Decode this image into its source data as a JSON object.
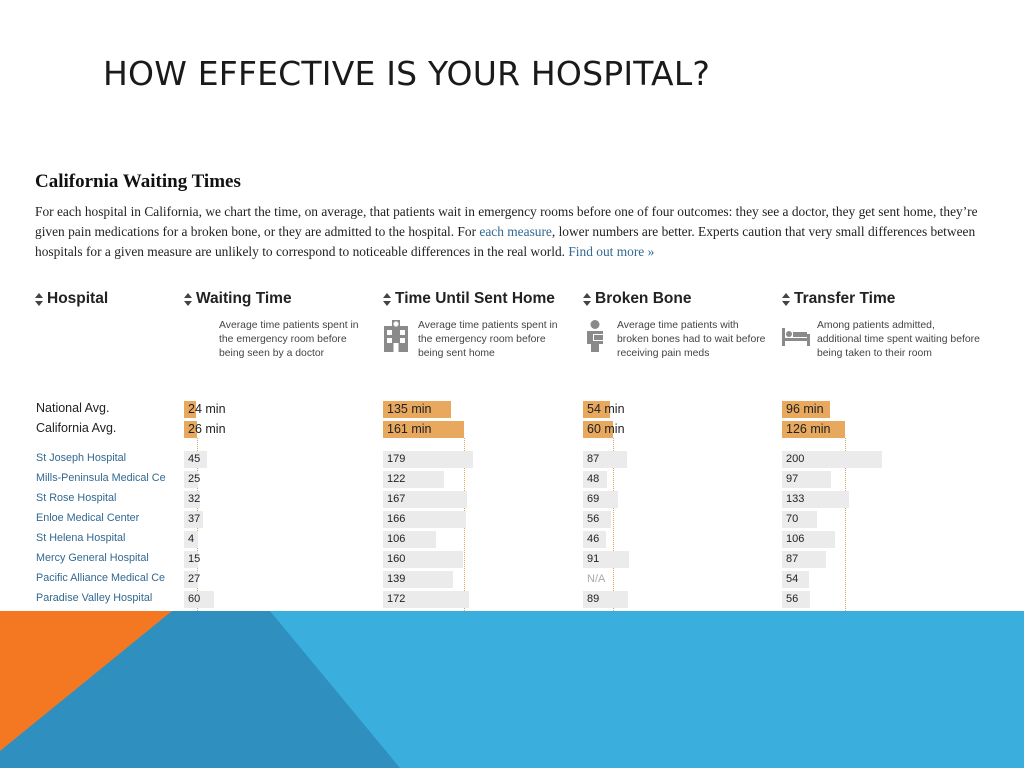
{
  "slide": {
    "title": "HOW EFFECTIVE IS YOUR HOSPITAL?"
  },
  "embed": {
    "title": "California Waiting Times",
    "desc_part1": "For each hospital in California, we chart the time, on average, that patients wait in emergency rooms before one of four outcomes: they see a doctor, they get sent home, they’re given pain medications for a broken bone, or they are admitted to the hospital. For ",
    "desc_link1": "each measure",
    "desc_part2": ", lower numbers are better. Experts caution that very small differences between hospitals for a given measure are unlikely to correspond to noticeable differences in the real world. ",
    "desc_link2": "Find out more »"
  },
  "columns": {
    "hospital": {
      "label": "Hospital"
    },
    "waiting": {
      "label": "Waiting Time",
      "desc": "Average time patients spent in the emergency room before being seen by a doctor",
      "icon": "none"
    },
    "sent_home": {
      "label": "Time Until Sent Home",
      "desc": "Average time patients spent in the emergency room before being sent home",
      "icon": "hospital-building-icon"
    },
    "broken_bone": {
      "label": "Broken Bone",
      "desc": "Average time patients with broken bones had to wait before receiving pain meds",
      "icon": "patient-with-cast-icon"
    },
    "transfer": {
      "label": "Transfer Time",
      "desc": "Among patients admitted, additional time spent waiting before being taken to their room",
      "icon": "hospital-bed-icon"
    }
  },
  "averages": [
    {
      "label": "National Avg.",
      "waiting": "24 min",
      "sent_home": "135 min",
      "broken_bone": "54 min",
      "transfer": "96 min"
    },
    {
      "label": "California Avg.",
      "waiting": "26 min",
      "sent_home": "161 min",
      "broken_bone": "60 min",
      "transfer": "126 min"
    }
  ],
  "avg_values": [
    {
      "waiting": 24,
      "sent_home": 135,
      "broken_bone": 54,
      "transfer": 96
    },
    {
      "waiting": 26,
      "sent_home": 161,
      "broken_bone": 60,
      "transfer": 126
    }
  ],
  "hospitals": [
    {
      "name": "St Joseph Hospital",
      "waiting": "45",
      "sent_home": "179",
      "broken_bone": "87",
      "transfer": "200"
    },
    {
      "name": "Mills-Peninsula Medical Ce",
      "waiting": "25",
      "sent_home": "122",
      "broken_bone": "48",
      "transfer": "97"
    },
    {
      "name": "St Rose Hospital",
      "waiting": "32",
      "sent_home": "167",
      "broken_bone": "69",
      "transfer": "133"
    },
    {
      "name": "Enloe Medical Center",
      "waiting": "37",
      "sent_home": "166",
      "broken_bone": "56",
      "transfer": "70"
    },
    {
      "name": "St Helena Hospital",
      "waiting": "4",
      "sent_home": "106",
      "broken_bone": "46",
      "transfer": "106"
    },
    {
      "name": "Mercy General Hospital",
      "waiting": "15",
      "sent_home": "160",
      "broken_bone": "91",
      "transfer": "87"
    },
    {
      "name": "Pacific Alliance Medical Ce",
      "waiting": "27",
      "sent_home": "139",
      "broken_bone": "N/A",
      "transfer": "54"
    },
    {
      "name": "Paradise Valley Hospital",
      "waiting": "60",
      "sent_home": "172",
      "broken_bone": "89",
      "transfer": "56"
    }
  ],
  "colors": {
    "avg_bar": "#e8a95f",
    "row_bar": "#ebebeb",
    "link": "#326891",
    "orange_shape": "#f47721",
    "blue_shape": "#3aaedc",
    "dark_blue_shape": "#2f8fbf"
  }
}
